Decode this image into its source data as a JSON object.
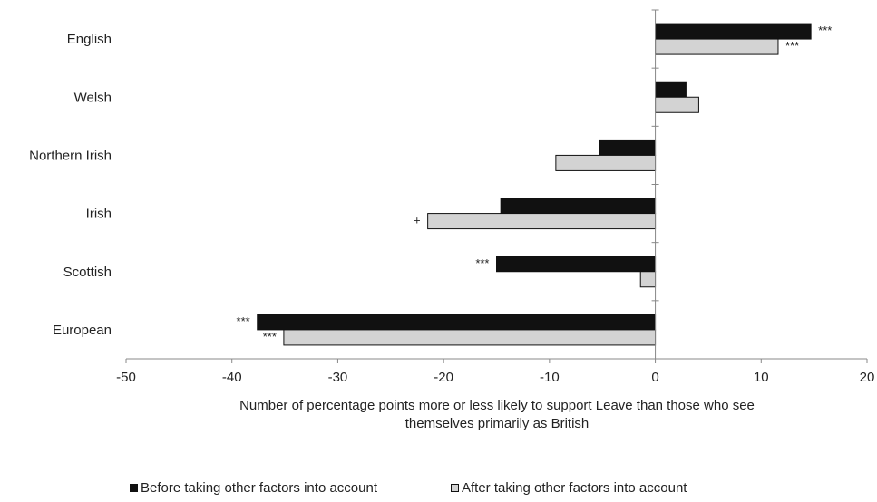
{
  "chart_data": {
    "type": "bar",
    "orientation": "horizontal",
    "categories": [
      "English",
      "Welsh",
      "Northern Irish",
      "Irish",
      "Scottish",
      "European"
    ],
    "series": [
      {
        "name": "Before taking other factors into account",
        "color": "#111111",
        "values": [
          14.7,
          2.9,
          -5.3,
          -14.6,
          -15.0,
          -37.6
        ],
        "annotations": [
          "***",
          "",
          "",
          "",
          "***",
          "***"
        ]
      },
      {
        "name": "After taking other factors into account",
        "color": "#d3d3d3",
        "values": [
          11.6,
          4.1,
          -9.4,
          -21.5,
          -1.4,
          -35.1
        ],
        "annotations": [
          "***",
          "",
          "",
          "+",
          "",
          "***"
        ]
      }
    ],
    "xlim": [
      -50,
      20
    ],
    "xticks": [
      -50,
      -40,
      -30,
      -20,
      -10,
      0,
      10,
      20
    ],
    "xlabel_lines": [
      "Number of percentage points more or less likely to support Leave than those who see",
      "themselves primarily as British"
    ],
    "legend_position": "bottom",
    "grid": false
  }
}
